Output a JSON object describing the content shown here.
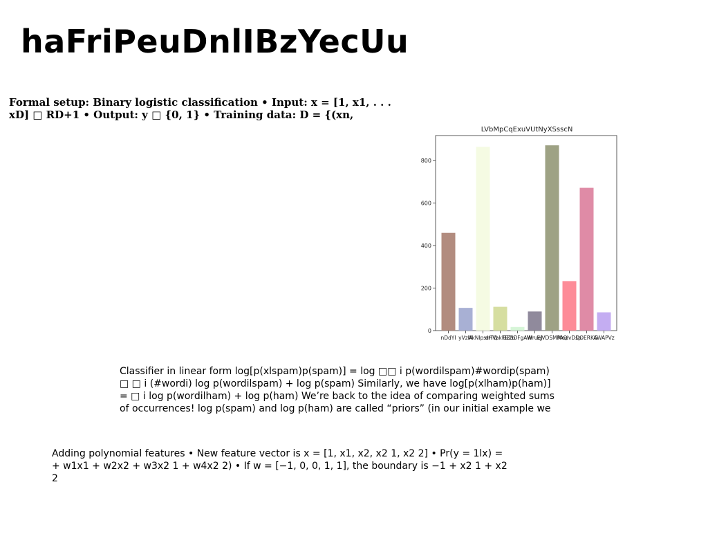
{
  "slide": {
    "title": "haFriPeuDnlIBzYecUu",
    "block1": "Formal setup: Binary logistic classification • Input: x = [1, x1, . . . xD] □ RD+1 • Output: y □ {0, 1} • Training data: D = {(xn,",
    "block2": "Classifier in linear form log[p(xlspam)p(spam)] = log □□ i p(wordilspam)#wordip(spam) □ □ i (#wordi) log p(wordilspam) + log p(spam) Similarly, we have log[p(xlham)p(ham)] = □ i log p(wordilham) + log p(ham) We’re back to the idea of comparing weighted sums of occurrences! log p(spam) and log p(ham) are called “priors” (in our initial example we",
    "block3": "Adding polynomial features • New feature vector is x = [1, x1, x2, x2 1, x2 2] • Pr(y = 1lx) = + w1x1 + w2x2 + w3x2 1 + w4x2 2) • If w = [−1, 0, 0, 1, 1], the boundary is −1 + x2 1 + x2 2"
  },
  "chart_data": {
    "type": "bar",
    "title": "LVbMpCqExuVUtNyXSsscN",
    "categories": [
      "nDdYI",
      "yVzlA",
      "AkNlpsrrTQ",
      "dHVakFBZb",
      "BZaDFgAW",
      "WrueJ",
      "EJVDSMPAQ",
      "ModvDsp",
      "DOERKG",
      "AWAPVz"
    ],
    "values": [
      460,
      107,
      865,
      112,
      17,
      90,
      872,
      233,
      672,
      86
    ],
    "colors": [
      "#b28c7f",
      "#a8b0d4",
      "#f5fbe3",
      "#d6dea1",
      "#d6f5d7",
      "#908a9c",
      "#9ea284",
      "#fd8c98",
      "#df8ba6",
      "#c4adf2"
    ],
    "ylim": [
      0,
      918
    ],
    "yticks": [
      0,
      200,
      400,
      600,
      800
    ],
    "grid": false,
    "legend": "none"
  }
}
